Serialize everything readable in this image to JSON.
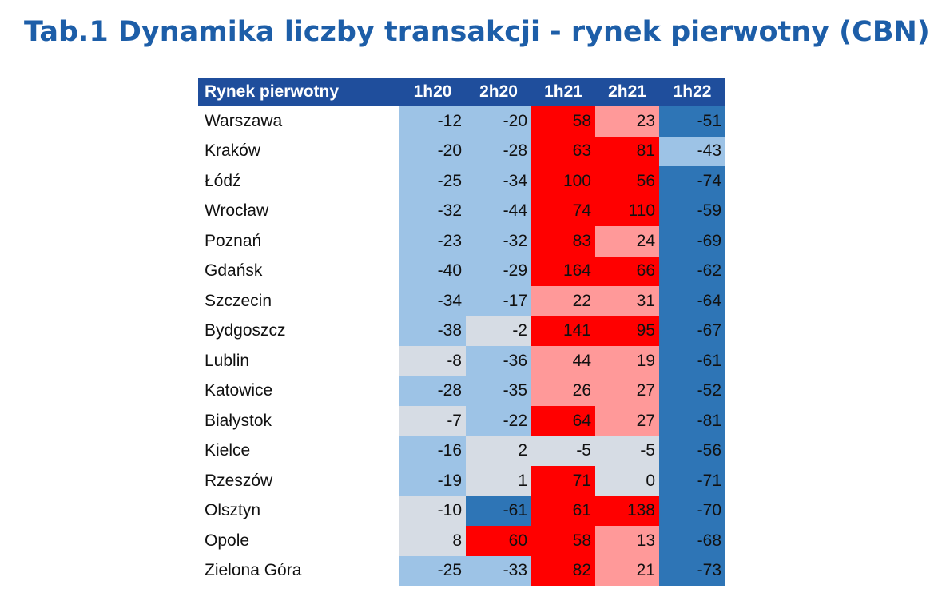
{
  "title": "Tab.1 Dynamika liczby transakcji - rynek pierwotny (CBN)",
  "table": {
    "header": [
      "Rynek pierwotny",
      "1h20",
      "2h20",
      "1h21",
      "2h21",
      "1h22"
    ],
    "rows": [
      {
        "name": "Warszawa",
        "values": [
          -12,
          -20,
          58,
          23,
          -51
        ],
        "colors": [
          "#9dc3e6",
          "#9dc3e6",
          "#ff0000",
          "#ff9999",
          "#2e75b6"
        ]
      },
      {
        "name": "Kraków",
        "values": [
          -20,
          -28,
          63,
          81,
          -43
        ],
        "colors": [
          "#9dc3e6",
          "#9dc3e6",
          "#ff0000",
          "#ff0000",
          "#9dc3e6"
        ]
      },
      {
        "name": "Łódź",
        "values": [
          -25,
          -34,
          100,
          56,
          -74
        ],
        "colors": [
          "#9dc3e6",
          "#9dc3e6",
          "#ff0000",
          "#ff0000",
          "#2e75b6"
        ]
      },
      {
        "name": "Wrocław",
        "values": [
          -32,
          -44,
          74,
          110,
          -59
        ],
        "colors": [
          "#9dc3e6",
          "#9dc3e6",
          "#ff0000",
          "#ff0000",
          "#2e75b6"
        ]
      },
      {
        "name": "Poznań",
        "values": [
          -23,
          -32,
          83,
          24,
          -69
        ],
        "colors": [
          "#9dc3e6",
          "#9dc3e6",
          "#ff0000",
          "#ff9999",
          "#2e75b6"
        ]
      },
      {
        "name": "Gdańsk",
        "values": [
          -40,
          -29,
          164,
          66,
          -62
        ],
        "colors": [
          "#9dc3e6",
          "#9dc3e6",
          "#ff0000",
          "#ff0000",
          "#2e75b6"
        ]
      },
      {
        "name": "Szczecin",
        "values": [
          -34,
          -17,
          22,
          31,
          -64
        ],
        "colors": [
          "#9dc3e6",
          "#9dc3e6",
          "#ff9999",
          "#ff9999",
          "#2e75b6"
        ]
      },
      {
        "name": "Bydgoszcz",
        "values": [
          -38,
          -2,
          141,
          95,
          -67
        ],
        "colors": [
          "#9dc3e6",
          "#d6dce4",
          "#ff0000",
          "#ff0000",
          "#2e75b6"
        ]
      },
      {
        "name": "Lublin",
        "values": [
          -8,
          -36,
          44,
          19,
          -61
        ],
        "colors": [
          "#d6dce4",
          "#9dc3e6",
          "#ff9999",
          "#ff9999",
          "#2e75b6"
        ]
      },
      {
        "name": "Katowice",
        "values": [
          -28,
          -35,
          26,
          27,
          -52
        ],
        "colors": [
          "#9dc3e6",
          "#9dc3e6",
          "#ff9999",
          "#ff9999",
          "#2e75b6"
        ]
      },
      {
        "name": "Białystok",
        "values": [
          -7,
          -22,
          64,
          27,
          -81
        ],
        "colors": [
          "#d6dce4",
          "#9dc3e6",
          "#ff0000",
          "#ff9999",
          "#2e75b6"
        ]
      },
      {
        "name": "Kielce",
        "values": [
          -16,
          2,
          -5,
          -5,
          -56
        ],
        "colors": [
          "#9dc3e6",
          "#d6dce4",
          "#d6dce4",
          "#d6dce4",
          "#2e75b6"
        ]
      },
      {
        "name": "Rzeszów",
        "values": [
          -19,
          1,
          71,
          0,
          -71
        ],
        "colors": [
          "#9dc3e6",
          "#d6dce4",
          "#ff0000",
          "#d6dce4",
          "#2e75b6"
        ]
      },
      {
        "name": "Olsztyn",
        "values": [
          -10,
          -61,
          61,
          138,
          -70
        ],
        "colors": [
          "#d6dce4",
          "#2e75b6",
          "#ff0000",
          "#ff0000",
          "#2e75b6"
        ]
      },
      {
        "name": "Opole",
        "values": [
          8,
          60,
          58,
          13,
          -68
        ],
        "colors": [
          "#d6dce4",
          "#ff0000",
          "#ff0000",
          "#ff9999",
          "#2e75b6"
        ]
      },
      {
        "name": "Zielona Góra",
        "values": [
          -25,
          -33,
          82,
          21,
          -73
        ],
        "colors": [
          "#9dc3e6",
          "#9dc3e6",
          "#ff0000",
          "#ff9999",
          "#2e75b6"
        ]
      }
    ]
  }
}
